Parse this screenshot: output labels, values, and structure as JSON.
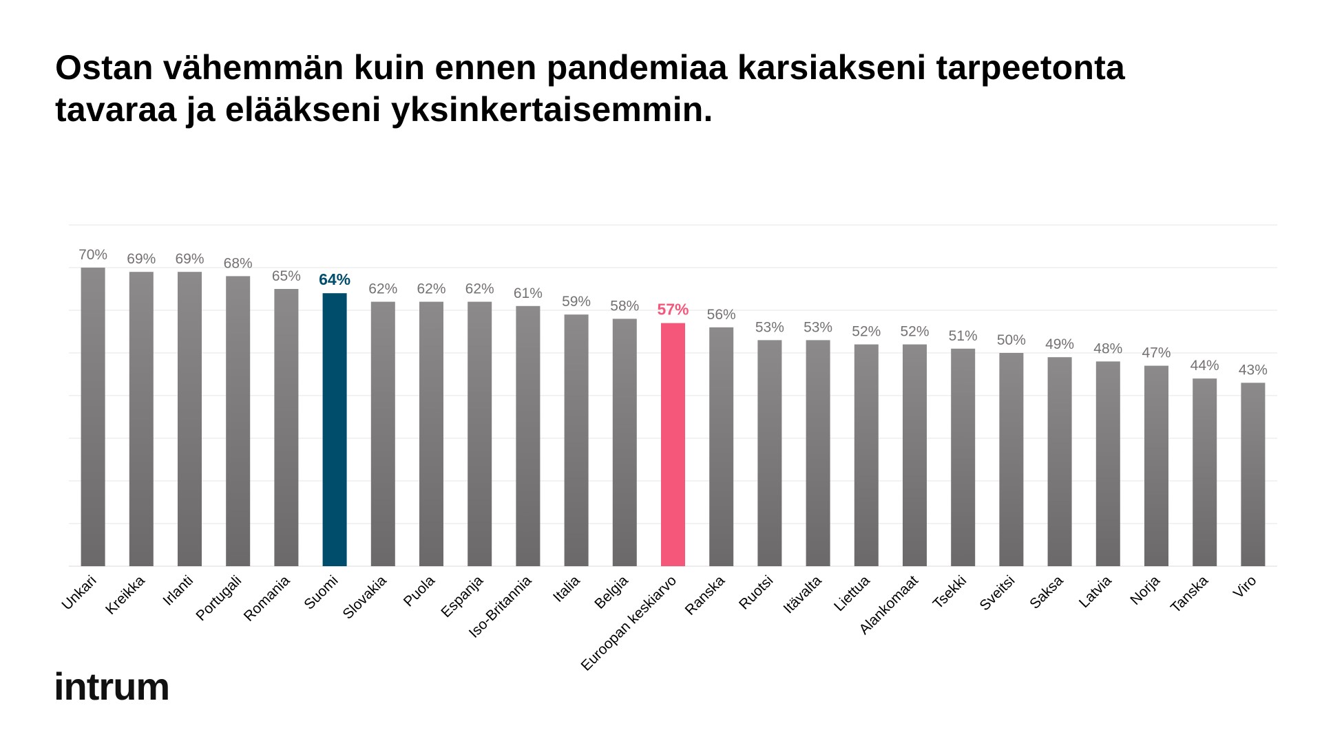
{
  "title_lines": [
    "Ostan vähemmän kuin ennen pandemiaa karsiakseni tarpeetonta",
    "tavaraa ja elääkseni yksinkertaisemmin."
  ],
  "logo_text": "intrum",
  "colors": {
    "bar_default_top": "#8c8a8b",
    "bar_default_bottom": "#6c696a",
    "highlight_finland": "#004d6b",
    "highlight_average": "#f5577b",
    "label_default": "#767171",
    "gridline": "#e6e6e6"
  },
  "chart_data": {
    "type": "bar",
    "categories": [
      "Unkari",
      "Kreikka",
      "Irlanti",
      "Portugali",
      "Romania",
      "Suomi",
      "Slovakia",
      "Puola",
      "Espanja",
      "Iso-Britannia",
      "Italia",
      "Belgia",
      "Euroopan keskiarvo",
      "Ranska",
      "Ruotsi",
      "Itävalta",
      "Liettua",
      "Alankomaat",
      "Tsekki",
      "Sveitsi",
      "Saksa",
      "Latvia",
      "Norja",
      "Tanska",
      "Viro"
    ],
    "values": [
      70,
      69,
      69,
      68,
      65,
      64,
      62,
      62,
      62,
      61,
      59,
      58,
      57,
      56,
      53,
      53,
      52,
      52,
      51,
      50,
      49,
      48,
      47,
      44,
      43
    ],
    "value_labels": [
      "70%",
      "69%",
      "69%",
      "68%",
      "65%",
      "64%",
      "62%",
      "62%",
      "62%",
      "61%",
      "59%",
      "58%",
      "57%",
      "56%",
      "53%",
      "53%",
      "52%",
      "52%",
      "51%",
      "50%",
      "49%",
      "48%",
      "47%",
      "44%",
      "43%"
    ],
    "highlights": {
      "Suomi": "highlight_finland",
      "Euroopan keskiarvo": "highlight_average"
    },
    "ylim": [
      0,
      80
    ],
    "grid_step": 10,
    "grid": true,
    "xlabel": "",
    "ylabel": "",
    "legend": false
  }
}
